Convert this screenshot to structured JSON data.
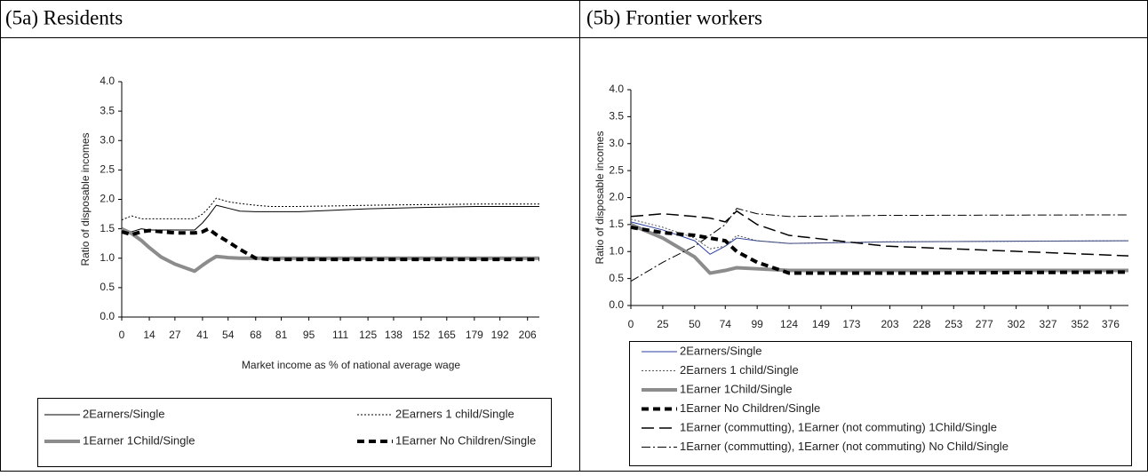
{
  "chart_data": [
    {
      "type": "line",
      "title": "(5a) Residents",
      "y_label": "Ratio of disposable incomes",
      "x_label": "Market income as % of national average wage",
      "xlim": [
        0,
        212
      ],
      "xticks": [
        0,
        14,
        27,
        41,
        54,
        68,
        81,
        95,
        111,
        125,
        138,
        152,
        165,
        179,
        192,
        206
      ],
      "ylim": [
        0,
        4
      ],
      "yticks": [
        {
          "value": 0,
          "label": "0.0"
        },
        {
          "value": 0.5,
          "label": "0.5"
        },
        {
          "value": 1,
          "label": "1.0"
        },
        {
          "value": 1.5,
          "label": "1.5"
        },
        {
          "value": 2,
          "label": "2.0"
        },
        {
          "value": 2.5,
          "label": "2.5"
        },
        {
          "value": 3,
          "label": "3.0"
        },
        {
          "value": 3.5,
          "label": "3.5"
        },
        {
          "value": 4,
          "label": "4.0"
        }
      ],
      "x": [
        0,
        5,
        10,
        14,
        20,
        27,
        37,
        41,
        44,
        48,
        54,
        60,
        68,
        75,
        90,
        111,
        125,
        150,
        180,
        212
      ],
      "series": [
        {
          "name": "2Earners/Single",
          "color": "#000000",
          "values": [
            1.5,
            1.45,
            1.5,
            1.48,
            1.48,
            1.48,
            1.48,
            1.6,
            1.72,
            1.9,
            1.85,
            1.8,
            1.79,
            1.79,
            1.79,
            1.82,
            1.84,
            1.86,
            1.88,
            1.88
          ]
        },
        {
          "name": "2Earners 1 child/Single",
          "color": "#000000",
          "values": [
            1.65,
            1.72,
            1.67,
            1.67,
            1.67,
            1.67,
            1.67,
            1.75,
            1.85,
            2.02,
            1.96,
            1.93,
            1.9,
            1.88,
            1.88,
            1.89,
            1.9,
            1.91,
            1.92,
            1.92
          ]
        },
        {
          "name": "1Earner 1Child/Single",
          "color": "#8c8c8c",
          "values": [
            1.5,
            1.42,
            1.3,
            1.18,
            1.02,
            0.9,
            0.78,
            0.88,
            0.95,
            1.03,
            1.01,
            1.0,
            1.0,
            1.0,
            1.0,
            1.0,
            1.0,
            1.0,
            1.0,
            1.0
          ]
        },
        {
          "name": "1Earner No Children/Single",
          "color": "#000000",
          "values": [
            1.45,
            1.4,
            1.45,
            1.47,
            1.45,
            1.43,
            1.43,
            1.45,
            1.5,
            1.4,
            1.28,
            1.15,
            1.0,
            0.98,
            0.98,
            0.98,
            0.98,
            0.98,
            0.98,
            0.98
          ]
        }
      ]
    },
    {
      "type": "line",
      "title": "(5b) Frontier workers",
      "y_label": "Ratio of disposable incomes",
      "xlim": [
        0,
        390
      ],
      "xticks": [
        0,
        25,
        50,
        74,
        99,
        124,
        149,
        173,
        203,
        228,
        253,
        277,
        302,
        327,
        352,
        376
      ],
      "ylim": [
        0,
        4
      ],
      "yticks": [
        {
          "value": 0,
          "label": "0.0"
        },
        {
          "value": 0.5,
          "label": "0.5"
        },
        {
          "value": 1,
          "label": "1.0"
        },
        {
          "value": 1.5,
          "label": "1.5"
        },
        {
          "value": 2,
          "label": "2.0"
        },
        {
          "value": 2.5,
          "label": "2.5"
        },
        {
          "value": 3,
          "label": "3.0"
        },
        {
          "value": 3.5,
          "label": "3.5"
        },
        {
          "value": 4,
          "label": "4.0"
        }
      ],
      "x": [
        0,
        25,
        50,
        62,
        74,
        83,
        99,
        124,
        200,
        390
      ],
      "series": [
        {
          "name": "2Earners/Single",
          "color": "#2a3fa0",
          "values": [
            1.55,
            1.4,
            1.2,
            0.95,
            1.1,
            1.25,
            1.2,
            1.15,
            1.18,
            1.2
          ]
        },
        {
          "name": "2Earners 1 child/Single",
          "color": "#555555",
          "values": [
            1.6,
            1.45,
            1.25,
            1.05,
            1.1,
            1.3,
            1.2,
            1.15,
            1.18,
            1.2
          ]
        },
        {
          "name": "1Earner 1Child/Single",
          "color": "#8c8c8c",
          "values": [
            1.5,
            1.25,
            0.9,
            0.6,
            0.65,
            0.7,
            0.68,
            0.65,
            0.65,
            0.65
          ]
        },
        {
          "name": "1Earner No Children/Single",
          "color": "#000000",
          "values": [
            1.45,
            1.35,
            1.3,
            1.25,
            1.2,
            1.0,
            0.8,
            0.6,
            0.6,
            0.62
          ]
        },
        {
          "name": "1Earner (commutting), 1Earner (not commuting) 1Child/Single",
          "color": "#000000",
          "values": [
            1.65,
            1.7,
            1.65,
            1.62,
            1.55,
            1.75,
            1.5,
            1.3,
            1.1,
            0.92
          ]
        },
        {
          "name": "1Earner (commutting), 1Earner (not commuting) No Child/Single",
          "color": "#000000",
          "values": [
            0.45,
            0.8,
            1.1,
            1.3,
            1.5,
            1.8,
            1.7,
            1.65,
            1.67,
            1.68
          ]
        }
      ]
    }
  ]
}
